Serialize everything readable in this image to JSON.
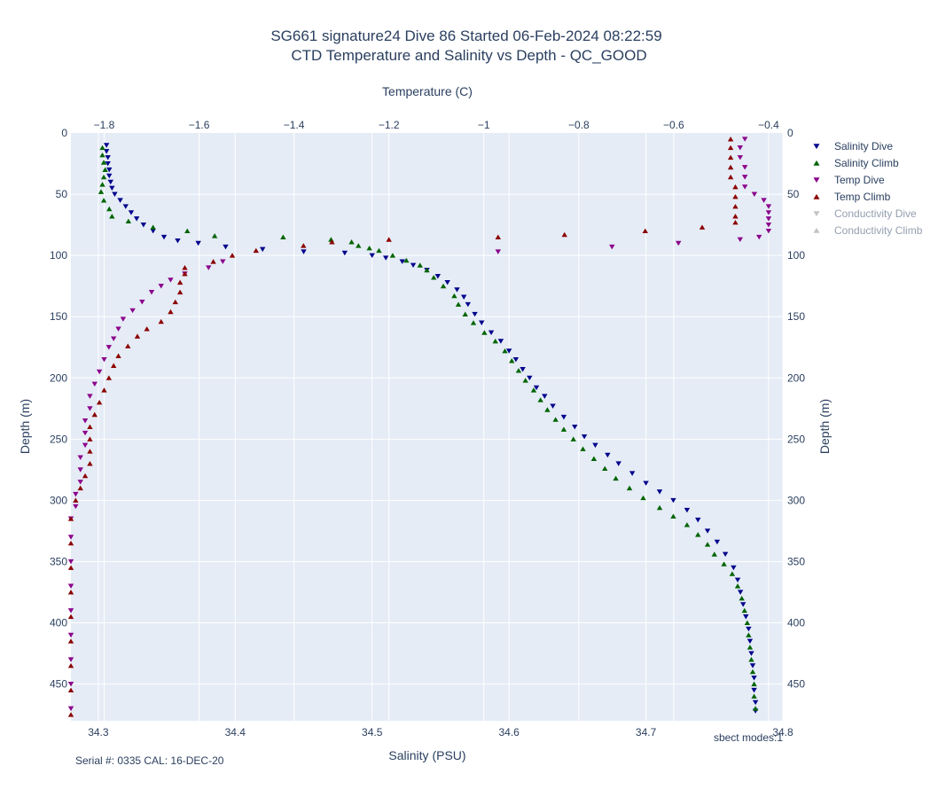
{
  "chart_data": {
    "type": "scatter",
    "title_line1": "SG661 signature24 Dive 86 Started 06-Feb-2024 08:22:59",
    "title_line2": "CTD Temperature and Salinity vs Depth - QC_GOOD",
    "xlabel_bottom": "Salinity (PSU)",
    "xlabel_top": "Temperature (C)",
    "ylabel_left": "Depth (m)",
    "ylabel_right": "Depth (m)",
    "x_bottom_range": [
      34.28,
      34.8
    ],
    "x_bottom_ticks": [
      "34.3",
      "34.4",
      "34.5",
      "34.6",
      "34.7",
      "34.8"
    ],
    "x_top_range": [
      -1.87,
      -0.37
    ],
    "x_top_ticks": [
      "−1.8",
      "−1.6",
      "−1.4",
      "−1.2",
      "−1",
      "−0.8",
      "−0.6",
      "−0.4"
    ],
    "y_range": [
      0,
      480
    ],
    "y_reversed": true,
    "y_ticks": [
      "0",
      "50",
      "100",
      "150",
      "200",
      "250",
      "300",
      "350",
      "400",
      "450"
    ],
    "grid": true,
    "plot_background": "#e5ecf6",
    "legend_position": "right",
    "series": [
      {
        "name": "Salinity Dive",
        "axis": "salinity",
        "marker": "triangle-down",
        "color": "#00008b",
        "visible": true,
        "points": [
          [
            34.306,
            10
          ],
          [
            34.306,
            15
          ],
          [
            34.307,
            20
          ],
          [
            34.307,
            25
          ],
          [
            34.308,
            30
          ],
          [
            34.308,
            35
          ],
          [
            34.309,
            40
          ],
          [
            34.31,
            45
          ],
          [
            34.312,
            50
          ],
          [
            34.316,
            55
          ],
          [
            34.32,
            60
          ],
          [
            34.324,
            65
          ],
          [
            34.328,
            70
          ],
          [
            34.333,
            75
          ],
          [
            34.34,
            80
          ],
          [
            34.348,
            85
          ],
          [
            34.358,
            88
          ],
          [
            34.373,
            90
          ],
          [
            34.393,
            93
          ],
          [
            34.42,
            95
          ],
          [
            34.45,
            97
          ],
          [
            34.48,
            98
          ],
          [
            34.5,
            100
          ],
          [
            34.51,
            102
          ],
          [
            34.522,
            105
          ],
          [
            34.53,
            108
          ],
          [
            34.54,
            112
          ],
          [
            34.548,
            117
          ],
          [
            34.555,
            122
          ],
          [
            34.562,
            128
          ],
          [
            34.567,
            134
          ],
          [
            34.57,
            140
          ],
          [
            34.575,
            148
          ],
          [
            34.58,
            155
          ],
          [
            34.587,
            163
          ],
          [
            34.594,
            170
          ],
          [
            34.6,
            178
          ],
          [
            34.605,
            185
          ],
          [
            34.61,
            193
          ],
          [
            34.615,
            200
          ],
          [
            34.62,
            208
          ],
          [
            34.626,
            215
          ],
          [
            34.632,
            223
          ],
          [
            34.64,
            232
          ],
          [
            34.648,
            240
          ],
          [
            34.655,
            248
          ],
          [
            34.663,
            255
          ],
          [
            34.672,
            263
          ],
          [
            34.68,
            270
          ],
          [
            34.69,
            278
          ],
          [
            34.7,
            286
          ],
          [
            34.71,
            293
          ],
          [
            34.72,
            300
          ],
          [
            34.73,
            308
          ],
          [
            34.738,
            316
          ],
          [
            34.745,
            325
          ],
          [
            34.752,
            334
          ],
          [
            34.758,
            344
          ],
          [
            34.764,
            355
          ],
          [
            34.767,
            365
          ],
          [
            34.769,
            375
          ],
          [
            34.771,
            385
          ],
          [
            34.773,
            395
          ],
          [
            34.775,
            405
          ],
          [
            34.776,
            415
          ],
          [
            34.777,
            425
          ],
          [
            34.778,
            435
          ],
          [
            34.779,
            445
          ],
          [
            34.779,
            455
          ],
          [
            34.78,
            465
          ],
          [
            34.78,
            472
          ]
        ]
      },
      {
        "name": "Salinity Climb",
        "axis": "salinity",
        "marker": "triangle-up",
        "color": "#006400",
        "visible": true,
        "points": [
          [
            34.303,
            12
          ],
          [
            34.303,
            18
          ],
          [
            34.304,
            24
          ],
          [
            34.305,
            30
          ],
          [
            34.304,
            36
          ],
          [
            34.303,
            42
          ],
          [
            34.302,
            48
          ],
          [
            34.304,
            55
          ],
          [
            34.308,
            62
          ],
          [
            34.31,
            68
          ],
          [
            34.322,
            72
          ],
          [
            34.34,
            77
          ],
          [
            34.365,
            80
          ],
          [
            34.385,
            84
          ],
          [
            34.435,
            85
          ],
          [
            34.47,
            87
          ],
          [
            34.485,
            89
          ],
          [
            34.49,
            92
          ],
          [
            34.498,
            94
          ],
          [
            34.505,
            96
          ],
          [
            34.515,
            100
          ],
          [
            34.525,
            104
          ],
          [
            34.535,
            108
          ],
          [
            34.54,
            112
          ],
          [
            34.545,
            118
          ],
          [
            34.552,
            125
          ],
          [
            34.56,
            133
          ],
          [
            34.563,
            140
          ],
          [
            34.568,
            148
          ],
          [
            34.574,
            155
          ],
          [
            34.582,
            163
          ],
          [
            34.59,
            170
          ],
          [
            34.597,
            178
          ],
          [
            34.602,
            186
          ],
          [
            34.607,
            194
          ],
          [
            34.612,
            202
          ],
          [
            34.618,
            210
          ],
          [
            34.623,
            218
          ],
          [
            34.628,
            226
          ],
          [
            34.634,
            234
          ],
          [
            34.64,
            242
          ],
          [
            34.647,
            250
          ],
          [
            34.654,
            258
          ],
          [
            34.662,
            266
          ],
          [
            34.67,
            274
          ],
          [
            34.678,
            282
          ],
          [
            34.688,
            290
          ],
          [
            34.698,
            298
          ],
          [
            34.71,
            306
          ],
          [
            34.72,
            313
          ],
          [
            34.73,
            320
          ],
          [
            34.738,
            328
          ],
          [
            34.745,
            336
          ],
          [
            34.75,
            344
          ],
          [
            34.757,
            352
          ],
          [
            34.763,
            360
          ],
          [
            34.767,
            370
          ],
          [
            34.77,
            380
          ],
          [
            34.772,
            390
          ],
          [
            34.774,
            400
          ],
          [
            34.775,
            410
          ],
          [
            34.776,
            420
          ],
          [
            34.777,
            430
          ],
          [
            34.778,
            440
          ],
          [
            34.779,
            450
          ],
          [
            34.779,
            460
          ],
          [
            34.78,
            470
          ]
        ]
      },
      {
        "name": "Temp Dive",
        "axis": "temperature",
        "marker": "triangle-down",
        "color": "#8b008b",
        "visible": true,
        "points": [
          [
            -0.45,
            5
          ],
          [
            -0.46,
            12
          ],
          [
            -0.46,
            20
          ],
          [
            -0.45,
            28
          ],
          [
            -0.45,
            36
          ],
          [
            -0.45,
            44
          ],
          [
            -0.43,
            50
          ],
          [
            -0.41,
            55
          ],
          [
            -0.4,
            60
          ],
          [
            -0.4,
            65
          ],
          [
            -0.4,
            70
          ],
          [
            -0.4,
            75
          ],
          [
            -0.4,
            80
          ],
          [
            -0.42,
            85
          ],
          [
            -0.46,
            87
          ],
          [
            -0.59,
            90
          ],
          [
            -0.73,
            93
          ],
          [
            -0.97,
            97
          ],
          [
            -1.55,
            105
          ],
          [
            -1.58,
            110
          ],
          [
            -1.63,
            115
          ],
          [
            -1.66,
            120
          ],
          [
            -1.68,
            125
          ],
          [
            -1.7,
            130
          ],
          [
            -1.72,
            138
          ],
          [
            -1.74,
            145
          ],
          [
            -1.76,
            152
          ],
          [
            -1.77,
            160
          ],
          [
            -1.78,
            168
          ],
          [
            -1.79,
            175
          ],
          [
            -1.8,
            185
          ],
          [
            -1.81,
            195
          ],
          [
            -1.82,
            205
          ],
          [
            -1.83,
            215
          ],
          [
            -1.83,
            225
          ],
          [
            -1.84,
            235
          ],
          [
            -1.84,
            245
          ],
          [
            -1.84,
            255
          ],
          [
            -1.85,
            265
          ],
          [
            -1.85,
            275
          ],
          [
            -1.85,
            285
          ],
          [
            -1.86,
            295
          ],
          [
            -1.86,
            305
          ],
          [
            -1.87,
            315
          ],
          [
            -1.87,
            330
          ],
          [
            -1.87,
            350
          ],
          [
            -1.87,
            370
          ],
          [
            -1.87,
            390
          ],
          [
            -1.87,
            410
          ],
          [
            -1.87,
            430
          ],
          [
            -1.87,
            450
          ],
          [
            -1.87,
            470
          ]
        ]
      },
      {
        "name": "Temp Climb",
        "axis": "temperature",
        "marker": "triangle-up",
        "color": "#8b0000",
        "visible": true,
        "points": [
          [
            -0.48,
            5
          ],
          [
            -0.48,
            12
          ],
          [
            -0.48,
            20
          ],
          [
            -0.48,
            28
          ],
          [
            -0.48,
            36
          ],
          [
            -0.47,
            44
          ],
          [
            -0.47,
            52
          ],
          [
            -0.47,
            60
          ],
          [
            -0.47,
            68
          ],
          [
            -0.47,
            73
          ],
          [
            -0.54,
            77
          ],
          [
            -0.66,
            80
          ],
          [
            -0.83,
            83
          ],
          [
            -0.97,
            85
          ],
          [
            -1.2,
            87
          ],
          [
            -1.32,
            89
          ],
          [
            -1.38,
            92
          ],
          [
            -1.48,
            96
          ],
          [
            -1.53,
            100
          ],
          [
            -1.57,
            105
          ],
          [
            -1.63,
            110
          ],
          [
            -1.63,
            115
          ],
          [
            -1.64,
            122
          ],
          [
            -1.64,
            130
          ],
          [
            -1.65,
            138
          ],
          [
            -1.66,
            146
          ],
          [
            -1.68,
            154
          ],
          [
            -1.71,
            160
          ],
          [
            -1.73,
            166
          ],
          [
            -1.75,
            174
          ],
          [
            -1.77,
            182
          ],
          [
            -1.78,
            190
          ],
          [
            -1.79,
            200
          ],
          [
            -1.8,
            210
          ],
          [
            -1.81,
            220
          ],
          [
            -1.82,
            230
          ],
          [
            -1.83,
            240
          ],
          [
            -1.83,
            250
          ],
          [
            -1.83,
            260
          ],
          [
            -1.83,
            270
          ],
          [
            -1.84,
            280
          ],
          [
            -1.85,
            290
          ],
          [
            -1.86,
            300
          ],
          [
            -1.87,
            315
          ],
          [
            -1.87,
            335
          ],
          [
            -1.87,
            355
          ],
          [
            -1.87,
            375
          ],
          [
            -1.87,
            395
          ],
          [
            -1.87,
            415
          ],
          [
            -1.87,
            435
          ],
          [
            -1.87,
            455
          ],
          [
            -1.87,
            475
          ]
        ]
      },
      {
        "name": "Conductivity Dive",
        "axis": "none",
        "marker": "triangle-down",
        "color": "#888888",
        "visible": false,
        "points": []
      },
      {
        "name": "Conductivity Climb",
        "axis": "none",
        "marker": "triangle-up",
        "color": "#888888",
        "visible": false,
        "points": []
      }
    ]
  },
  "footer": {
    "serial": "Serial #: 0335  CAL: 16-DEC-20",
    "modes": "sbect modes:1"
  }
}
